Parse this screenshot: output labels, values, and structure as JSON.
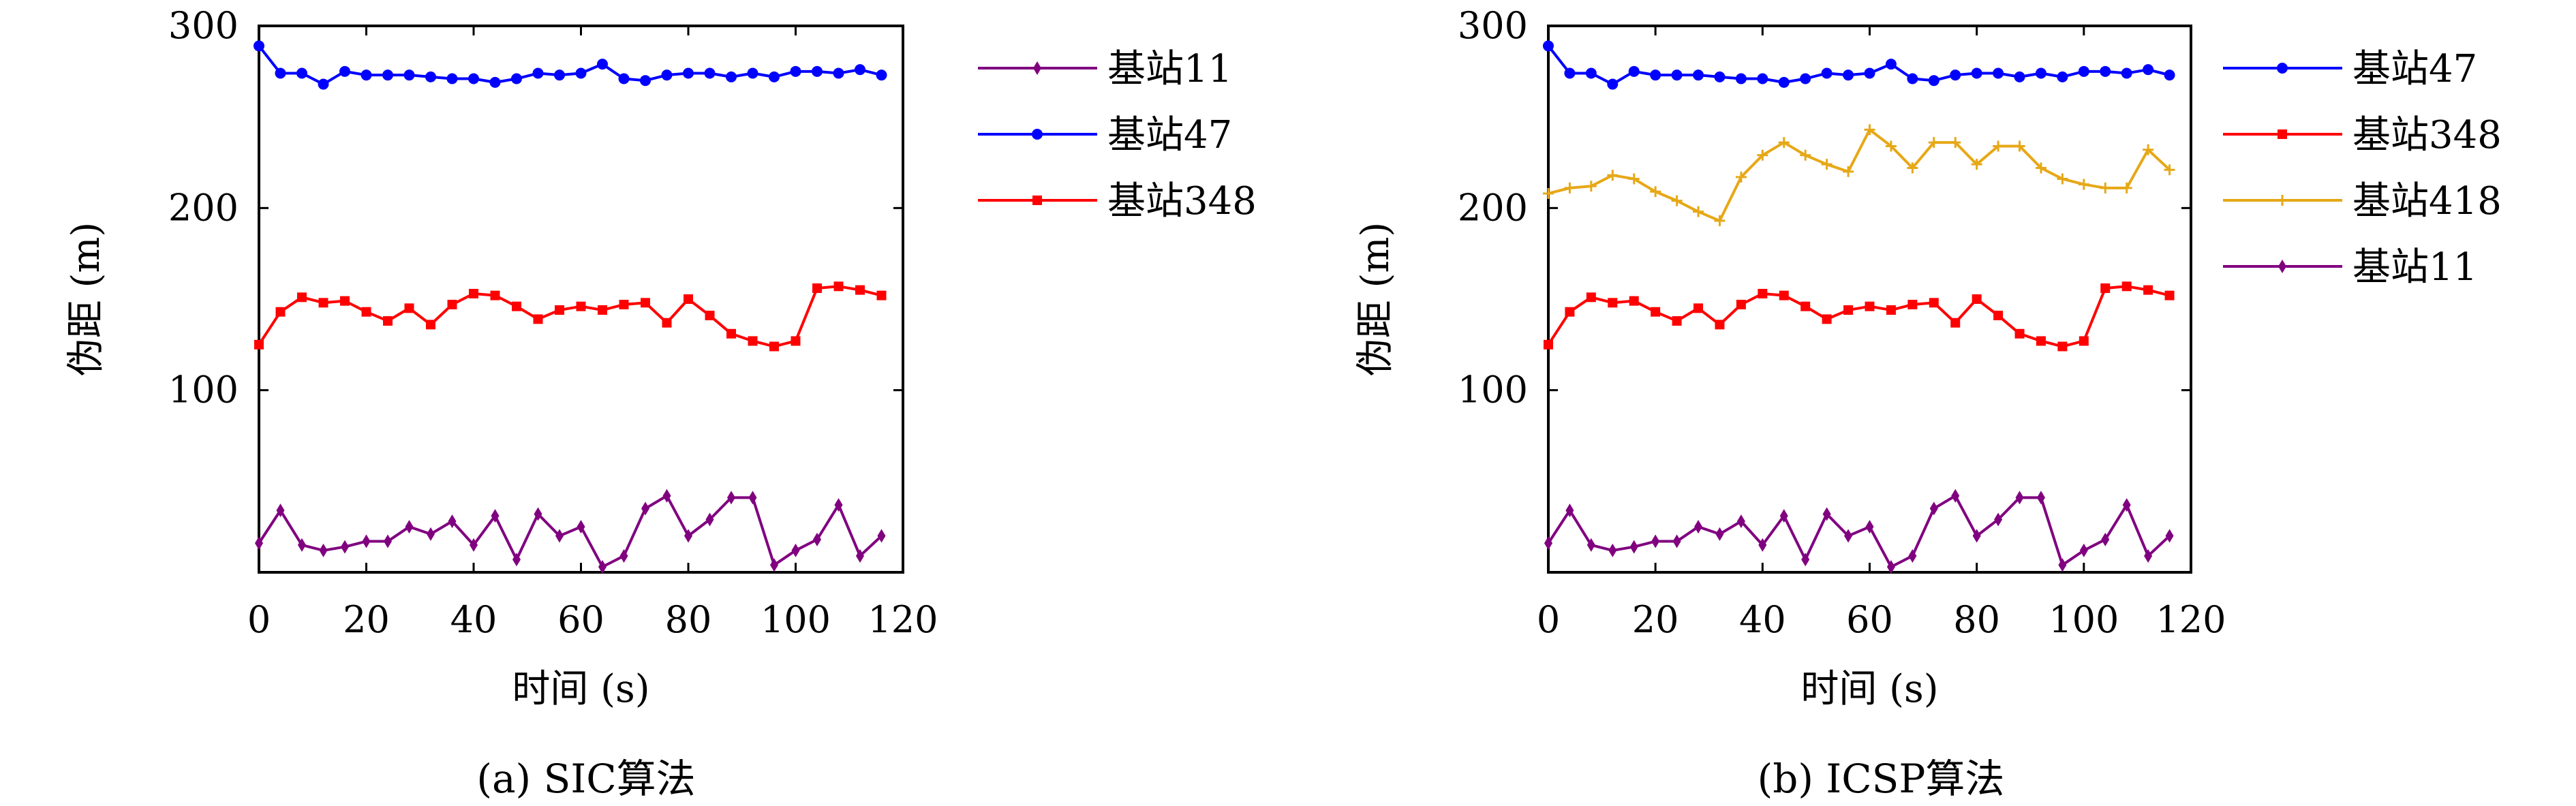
{
  "chart_data": [
    {
      "type": "line",
      "caption": "(a) SIC算法",
      "xlabel": "时间 (s)",
      "ylabel": "伪距 (m)",
      "xlim": [
        0,
        120
      ],
      "ylim": [
        0,
        300
      ],
      "xticks": [
        "0",
        "20",
        "40",
        "60",
        "80",
        "100",
        "120"
      ],
      "yticks": [
        "100",
        "200",
        "300"
      ],
      "legend_position": "right",
      "x": [
        0,
        4,
        8,
        12,
        16,
        20,
        24,
        28,
        32,
        36,
        40,
        44,
        48,
        52,
        56,
        60,
        64,
        68,
        72,
        76,
        80,
        84,
        88,
        92,
        96,
        100,
        104,
        108,
        112,
        116
      ],
      "series": [
        {
          "name": "基站11",
          "color": "#800080",
          "marker": "diamond",
          "values": [
            16,
            34,
            15,
            12,
            14,
            17,
            17,
            25,
            21,
            28,
            15,
            31,
            7,
            32,
            20,
            25,
            3,
            9,
            35,
            42,
            20,
            29,
            41,
            41,
            4,
            12,
            18,
            37,
            9,
            20
          ]
        },
        {
          "name": "基站47",
          "color": "#0000ff",
          "marker": "circle",
          "values": [
            289,
            274,
            274,
            268,
            275,
            273,
            273,
            273,
            272,
            271,
            271,
            269,
            271,
            274,
            273,
            274,
            279,
            271,
            270,
            273,
            274,
            274,
            272,
            274,
            272,
            275,
            275,
            274,
            276,
            273
          ]
        },
        {
          "name": "基站348",
          "color": "#ff0000",
          "marker": "square",
          "values": [
            125,
            143,
            151,
            148,
            149,
            143,
            138,
            145,
            136,
            147,
            153,
            152,
            146,
            139,
            144,
            146,
            144,
            147,
            148,
            137,
            150,
            141,
            131,
            127,
            124,
            127,
            156,
            157,
            155,
            152
          ]
        }
      ]
    },
    {
      "type": "line",
      "caption": "(b) ICSP算法",
      "xlabel": "时间 (s)",
      "ylabel": "伪距 (m)",
      "xlim": [
        0,
        120
      ],
      "ylim": [
        0,
        300
      ],
      "xticks": [
        "0",
        "20",
        "40",
        "60",
        "80",
        "100",
        "120"
      ],
      "yticks": [
        "100",
        "200",
        "300"
      ],
      "legend_position": "right",
      "x": [
        0,
        4,
        8,
        12,
        16,
        20,
        24,
        28,
        32,
        36,
        40,
        44,
        48,
        52,
        56,
        60,
        64,
        68,
        72,
        76,
        80,
        84,
        88,
        92,
        96,
        100,
        104,
        108,
        112,
        116
      ],
      "series": [
        {
          "name": "基站47",
          "color": "#0000ff",
          "marker": "circle",
          "values": [
            289,
            274,
            274,
            268,
            275,
            273,
            273,
            273,
            272,
            271,
            271,
            269,
            271,
            274,
            273,
            274,
            279,
            271,
            270,
            273,
            274,
            274,
            272,
            274,
            272,
            275,
            275,
            274,
            276,
            273
          ]
        },
        {
          "name": "基站348",
          "color": "#ff0000",
          "marker": "square",
          "values": [
            125,
            143,
            151,
            148,
            149,
            143,
            138,
            145,
            136,
            147,
            153,
            152,
            146,
            139,
            144,
            146,
            144,
            147,
            148,
            137,
            150,
            141,
            131,
            127,
            124,
            127,
            156,
            157,
            155,
            152
          ]
        },
        {
          "name": "基站418",
          "color": "#e6a817",
          "marker": "plus",
          "values": [
            208,
            211,
            212,
            218,
            216,
            209,
            204,
            198,
            193,
            217,
            229,
            236,
            229,
            224,
            220,
            243,
            234,
            222,
            236,
            236,
            224,
            234,
            234,
            222,
            216,
            213,
            211,
            211,
            232,
            221
          ]
        },
        {
          "name": "基站11",
          "color": "#800080",
          "marker": "diamond",
          "values": [
            16,
            34,
            15,
            12,
            14,
            17,
            17,
            25,
            21,
            28,
            15,
            31,
            7,
            32,
            20,
            25,
            3,
            9,
            35,
            42,
            20,
            29,
            41,
            41,
            4,
            12,
            18,
            37,
            9,
            20
          ]
        }
      ]
    }
  ]
}
